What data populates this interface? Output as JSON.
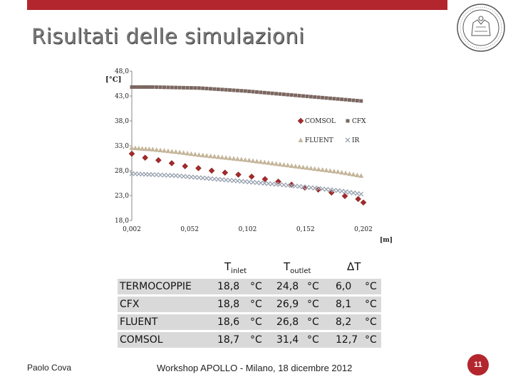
{
  "slide": {
    "title": "Risultati delle simulazioni",
    "footer_left": "Paolo Cova",
    "footer_center": "Workshop APOLLO - Milano, 18 dicembre 2012",
    "page_number": "11"
  },
  "colors": {
    "accent": "#b3262d",
    "comsol": "#a52a2a",
    "cfx": "#7b6660",
    "fluent": "#c4b59a",
    "ir": "#9aa3b1"
  },
  "chart_data": {
    "type": "scatter",
    "ylabel": "[°C]",
    "xlabel": "[m]",
    "xlim": [
      0.002,
      0.202
    ],
    "ylim": [
      18,
      48
    ],
    "x_ticks": [
      "0,002",
      "0,052",
      "0,102",
      "0,152",
      "0,202"
    ],
    "y_ticks": [
      "48,0",
      "43,0",
      "38,0",
      "33,0",
      "28,0",
      "23,0",
      "18,0"
    ],
    "legend_position": "top-right",
    "series": [
      {
        "name": "COMSOL",
        "marker": "diamond",
        "x": [
          0.002,
          0.0135,
          0.025,
          0.0365,
          0.048,
          0.0595,
          0.071,
          0.0825,
          0.094,
          0.1055,
          0.117,
          0.1285,
          0.14,
          0.1515,
          0.163,
          0.1745,
          0.186,
          0.1975,
          0.202
        ],
        "y": [
          31.4,
          30.6,
          30.1,
          29.5,
          28.9,
          28.5,
          28.0,
          27.6,
          27.2,
          26.8,
          26.3,
          25.8,
          25.2,
          24.6,
          24.2,
          23.6,
          22.9,
          22.3,
          21.6
        ]
      },
      {
        "name": "CFX",
        "marker": "square",
        "x": [
          0.002,
          0.02,
          0.04,
          0.06,
          0.08,
          0.1,
          0.12,
          0.14,
          0.16,
          0.18,
          0.2
        ],
        "y": [
          44.8,
          44.8,
          44.7,
          44.6,
          44.3,
          44.0,
          43.6,
          43.2,
          42.8,
          42.4,
          42.0
        ]
      },
      {
        "name": "FLUENT",
        "marker": "triangle",
        "x": [
          0.002,
          0.02,
          0.04,
          0.06,
          0.08,
          0.1,
          0.12,
          0.14,
          0.16,
          0.18,
          0.2
        ],
        "y": [
          32.6,
          32.3,
          31.8,
          31.2,
          30.7,
          30.2,
          29.6,
          29.0,
          28.4,
          27.8,
          27.0
        ]
      },
      {
        "name": "IR",
        "marker": "x",
        "x": [
          0.002,
          0.02,
          0.04,
          0.06,
          0.08,
          0.1,
          0.12,
          0.14,
          0.16,
          0.18,
          0.2
        ],
        "y": [
          27.4,
          27.2,
          27.0,
          26.6,
          26.2,
          25.8,
          25.4,
          25.0,
          24.5,
          24.0,
          23.3
        ]
      }
    ]
  },
  "table": {
    "headers": {
      "t_inlet": "T",
      "t_inlet_sub": "inlet",
      "t_outlet": "T",
      "t_outlet_sub": "outlet",
      "delta_t": "ΔT"
    },
    "rows": [
      {
        "label": "TERMOCOPPIE",
        "t_in": "18,8",
        "t_in_unit": "°C",
        "t_out": "24,8",
        "t_out_unit": "°C",
        "dt": "6,0",
        "dt_unit": "°C"
      },
      {
        "label": "CFX",
        "t_in": "18,8",
        "t_in_unit": "°C",
        "t_out": "26,9",
        "t_out_unit": "°C",
        "dt": "8,1",
        "dt_unit": "°C"
      },
      {
        "label": "FLUENT",
        "t_in": "18,6",
        "t_in_unit": "°C",
        "t_out": "26,8",
        "t_out_unit": "°C",
        "dt": "8,2",
        "dt_unit": "°C"
      },
      {
        "label": "COMSOL",
        "t_in": "18,7",
        "t_in_unit": "°C",
        "t_out": "31,4",
        "t_out_unit": "°C",
        "dt": "12,7",
        "dt_unit": "°C"
      }
    ]
  }
}
